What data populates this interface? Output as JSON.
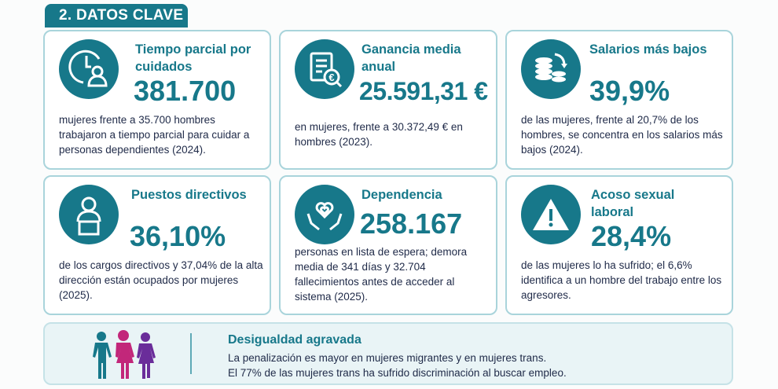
{
  "section_title": "2. DATOS CLAVE",
  "cards": [
    {
      "title": "Tiempo parcial por cuidados",
      "value": "381.700",
      "description": "mujeres frente a 35.700 hombres trabajaron a tiempo parcial para cuidar a personas dependientes (2024).",
      "icon": "clock-person-icon"
    },
    {
      "title": "Ganancia media anual",
      "value": "25.591,31 €",
      "description": "en mujeres, frente a 30.372,49 € en hombres (2023).",
      "icon": "euro-document-icon"
    },
    {
      "title": "Salarios más bajos",
      "value": "39,9%",
      "description": "de las mujeres, frente al 20,7% de los hombres, se concentra en los salarios más bajos (2024).",
      "icon": "coins-down-icon"
    },
    {
      "title": "Puestos directivos",
      "value": "36,10%",
      "description": "de los cargos directivos y 37,04% de la alta dirección están ocupados por mujeres (2025).",
      "icon": "woman-executive-icon"
    },
    {
      "title": "Dependencia",
      "value": "258.167",
      "description": "personas en lista de espera; demora media de 341 días y 32.704 fallecimientos antes de acceder al sistema (2025).",
      "icon": "heart-hands-icon"
    },
    {
      "title": "Acoso sexual laboral",
      "value": "28,4%",
      "description": "de las mujeres lo ha sufrido; el 6,6% identifica a un hombre del trabajo entre los agresores.",
      "icon": "warning-icon"
    }
  ],
  "banner": {
    "title": "Desigualdad agravada",
    "line1": "La penalización es mayor en mujeres migrantes y en mujeres trans.",
    "line2": "El 77% de las mujeres trans ha sufrido discriminación al buscar empleo."
  },
  "colors": {
    "teal": "#17788a",
    "text": "#1f2a48",
    "pink": "#c2277a",
    "purple": "#6a2d9a"
  }
}
